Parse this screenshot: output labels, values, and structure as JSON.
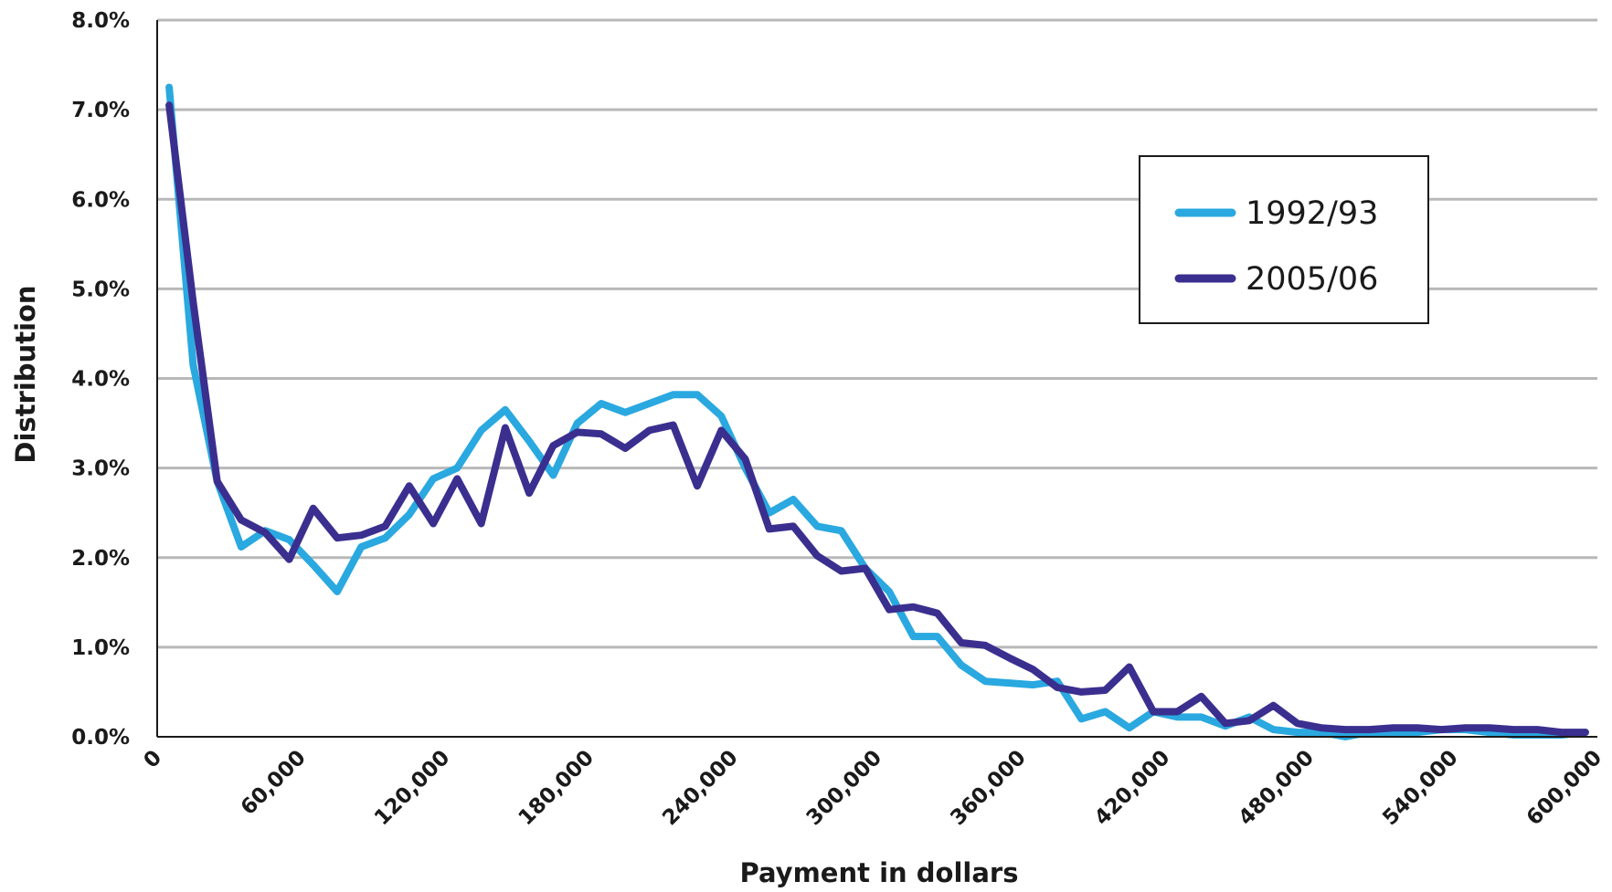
{
  "chart_data": {
    "type": "line",
    "title": "",
    "xlabel": "Payment in dollars",
    "ylabel": "Distribution",
    "xlim": [
      0,
      600000
    ],
    "ylim": [
      0,
      8
    ],
    "x_ticks": [
      "0",
      "60,000",
      "120,000",
      "180,000",
      "240,000",
      "300,000",
      "360,000",
      "420,000",
      "480,000",
      "540,000",
      "600,000"
    ],
    "y_ticks": [
      "0.0%",
      "1.0%",
      "2.0%",
      "3.0%",
      "4.0%",
      "5.0%",
      "6.0%",
      "7.0%",
      "8.0%"
    ],
    "grid": "horizontal",
    "legend_position": "top-right",
    "x": [
      5000,
      15000,
      25000,
      35000,
      45000,
      55000,
      65000,
      75000,
      85000,
      95000,
      105000,
      115000,
      125000,
      135000,
      145000,
      155000,
      165000,
      175000,
      185000,
      195000,
      205000,
      215000,
      225000,
      235000,
      245000,
      255000,
      265000,
      275000,
      285000,
      295000,
      305000,
      315000,
      325000,
      335000,
      345000,
      355000,
      365000,
      375000,
      385000,
      395000,
      405000,
      415000,
      425000,
      435000,
      445000,
      455000,
      465000,
      475000,
      485000,
      495000,
      505000,
      515000,
      525000,
      535000,
      545000,
      555000,
      565000,
      575000,
      585000,
      595000
    ],
    "series": [
      {
        "name": "1992/93",
        "color": "#2aa8e0",
        "values": [
          7.25,
          4.15,
          2.85,
          2.12,
          2.3,
          2.2,
          1.92,
          1.62,
          2.12,
          2.22,
          2.48,
          2.88,
          3.0,
          3.42,
          3.65,
          3.3,
          2.92,
          3.5,
          3.72,
          3.62,
          3.72,
          3.82,
          3.82,
          3.58,
          3.0,
          2.5,
          2.65,
          2.35,
          2.3,
          1.88,
          1.62,
          1.12,
          1.12,
          0.8,
          0.62,
          0.6,
          0.58,
          0.62,
          0.2,
          0.28,
          0.1,
          0.28,
          0.22,
          0.22,
          0.12,
          0.22,
          0.08,
          0.05,
          0.05,
          0.0,
          0.05,
          0.05,
          0.05,
          0.08,
          0.08,
          0.05,
          0.02,
          0.02,
          0.02,
          0.05
        ]
      },
      {
        "name": "2005/06",
        "color": "#3a2f8f",
        "values": [
          7.05,
          4.85,
          2.85,
          2.42,
          2.28,
          1.98,
          2.55,
          2.22,
          2.25,
          2.35,
          2.8,
          2.38,
          2.88,
          2.38,
          3.45,
          2.72,
          3.25,
          3.4,
          3.38,
          3.22,
          3.42,
          3.48,
          2.8,
          3.42,
          3.1,
          2.32,
          2.35,
          2.02,
          1.85,
          1.88,
          1.42,
          1.45,
          1.38,
          1.05,
          1.02,
          0.88,
          0.75,
          0.55,
          0.5,
          0.52,
          0.78,
          0.28,
          0.28,
          0.45,
          0.15,
          0.18,
          0.35,
          0.15,
          0.1,
          0.08,
          0.08,
          0.1,
          0.1,
          0.08,
          0.1,
          0.1,
          0.08,
          0.08,
          0.05,
          0.05
        ]
      }
    ]
  },
  "colors": {
    "grid": "#b8b8b8",
    "axis": "#1a1a1a"
  }
}
